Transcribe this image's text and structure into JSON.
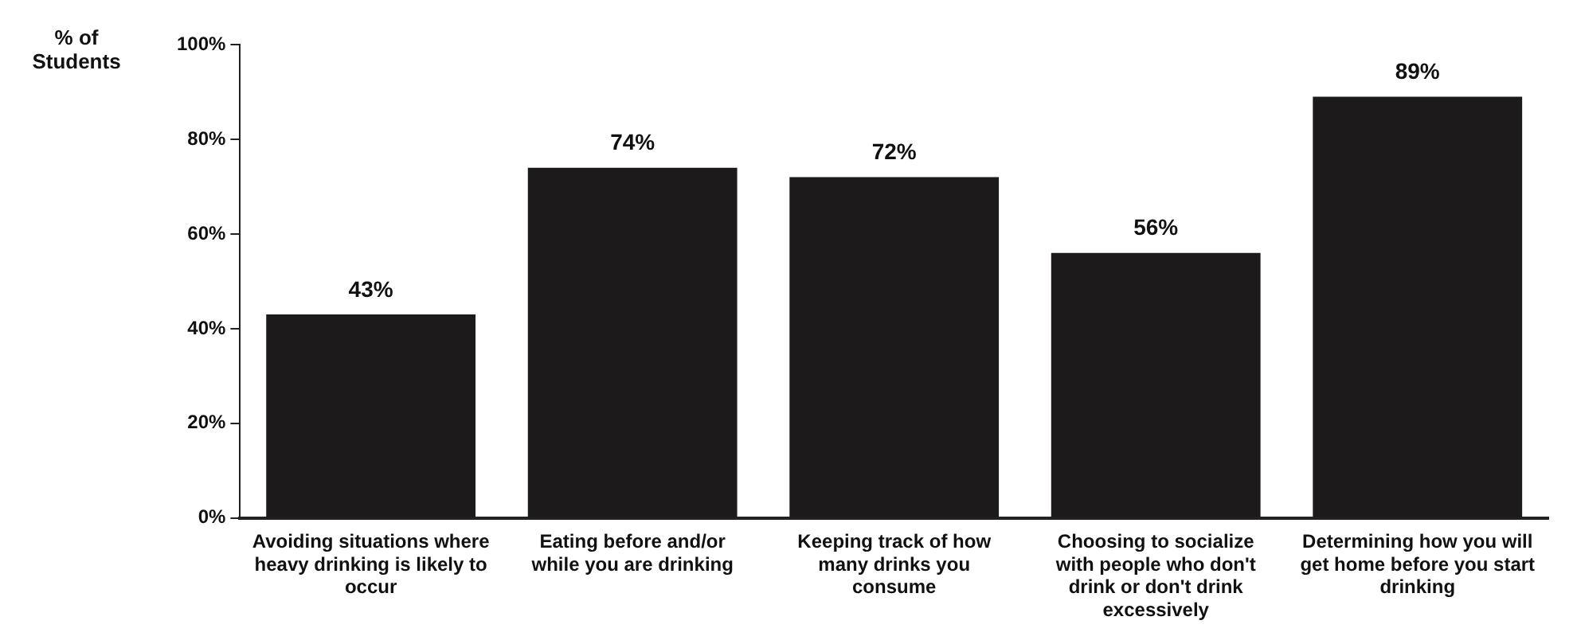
{
  "chart_data": {
    "type": "bar",
    "ylabel": "% of Students",
    "categories": [
      "Avoiding situations where heavy drinking is likely to occur",
      "Eating before and/or while you are drinking",
      "Keeping track of how many drinks you consume",
      "Choosing to socialize with people who don't drink or don't drink excessively",
      "Determining how you will get home before you start drinking"
    ],
    "values": [
      43,
      74,
      72,
      56,
      89
    ],
    "value_labels": [
      "43%",
      "74%",
      "72%",
      "56%",
      "89%"
    ],
    "color": "#1c1a1b",
    "ylim": [
      0,
      100
    ],
    "yticks": [
      {
        "value": 0,
        "label": "0%"
      },
      {
        "value": 20,
        "label": "20%"
      },
      {
        "value": 40,
        "label": "40%"
      },
      {
        "value": 60,
        "label": "60%"
      },
      {
        "value": 80,
        "label": "80%"
      },
      {
        "value": 100,
        "label": "100%"
      }
    ],
    "grid": false,
    "legend": false
  }
}
